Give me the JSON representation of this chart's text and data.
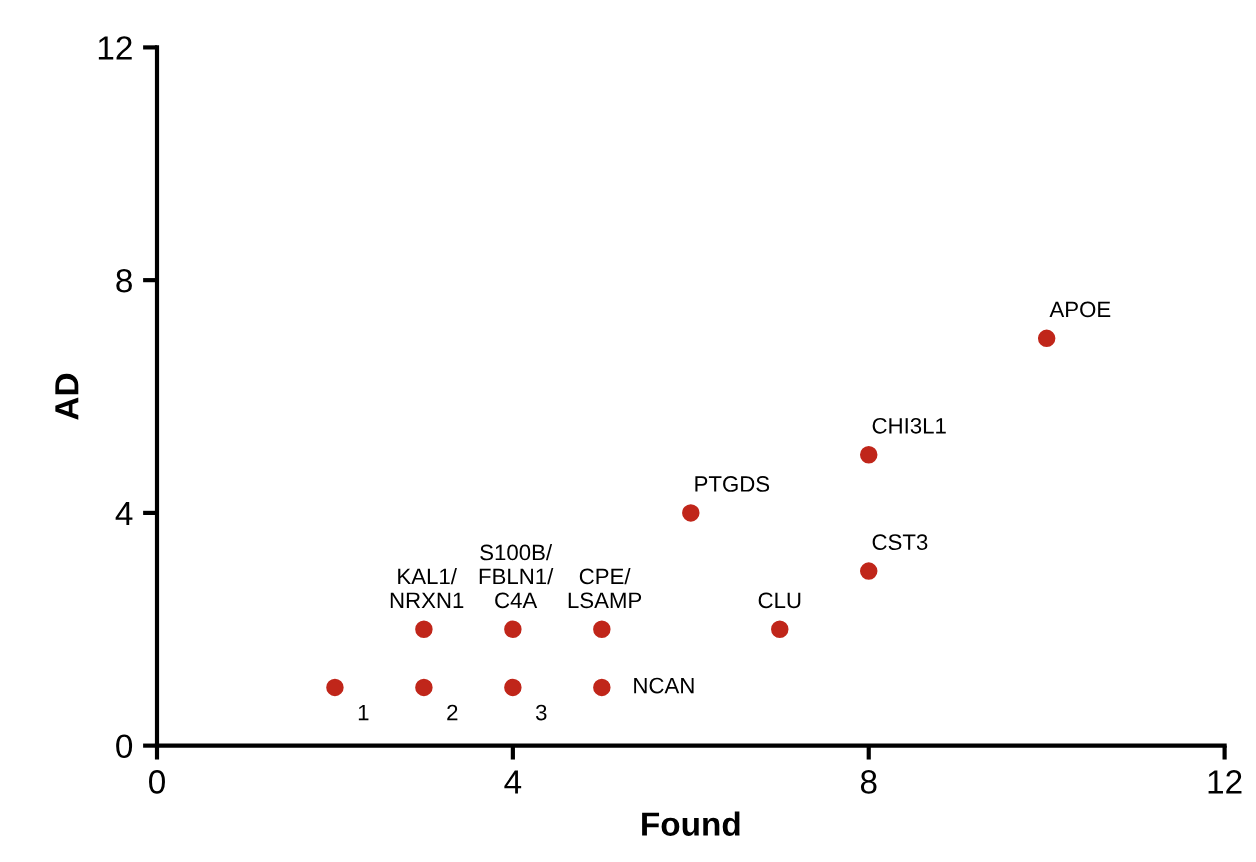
{
  "chart_data": {
    "type": "scatter",
    "xlabel": "Found",
    "ylabel": "AD",
    "x": [
      2,
      3,
      4,
      3,
      4,
      5,
      5,
      7,
      6,
      8,
      8,
      10
    ],
    "values": [
      1,
      1,
      1,
      2,
      2,
      2,
      1,
      2,
      4,
      5,
      3,
      7
    ],
    "color": "#c0261a",
    "marker": "circle",
    "xlim": [
      0,
      12
    ],
    "ylim": [
      0,
      12
    ],
    "xticks": [
      0,
      4,
      8,
      12
    ],
    "yticks": [
      0,
      4,
      8,
      12
    ],
    "grid": false,
    "annotations": [
      {
        "text": "1",
        "x": 2,
        "y": 1
      },
      {
        "text": "2",
        "x": 3,
        "y": 1
      },
      {
        "text": "3",
        "x": 4,
        "y": 1
      },
      {
        "text": "KAL1/\nNRXN1",
        "x": 3,
        "y": 2
      },
      {
        "text": "S100B/\nFBLN1/\nC4A",
        "x": 4,
        "y": 2
      },
      {
        "text": "CPE/\nLSAMP",
        "x": 5,
        "y": 2
      },
      {
        "text": "NCAN",
        "x": 5,
        "y": 1
      },
      {
        "text": "CLU",
        "x": 7,
        "y": 2
      },
      {
        "text": "PTGDS",
        "x": 6,
        "y": 4
      },
      {
        "text": "CHI3L1",
        "x": 8,
        "y": 5
      },
      {
        "text": "CST3",
        "x": 8,
        "y": 3
      },
      {
        "text": "APOE",
        "x": 10,
        "y": 7
      }
    ]
  }
}
